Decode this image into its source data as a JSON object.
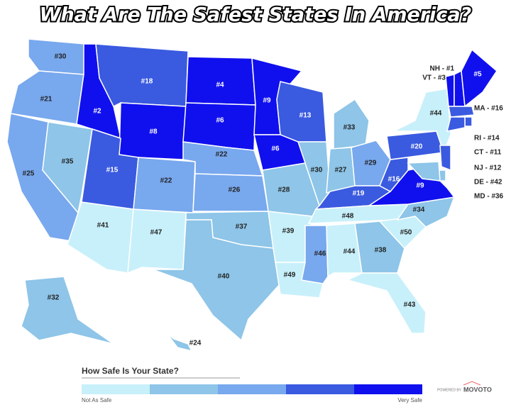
{
  "title": "What Are The Safest States In America?",
  "states": [
    {
      "label": "#30",
      "color": "#78a8ee"
    },
    {
      "label": "#21",
      "color": "#78a8ee"
    },
    {
      "label": "#25",
      "color": "#78a8ee"
    },
    {
      "label": "#35",
      "color": "#8ec5e8"
    },
    {
      "label": "#2",
      "color": "#1010ee"
    },
    {
      "label": "#18",
      "color": "#3a5ae0"
    },
    {
      "label": "#8",
      "color": "#1010ee"
    },
    {
      "label": "#15",
      "color": "#3a5ae0"
    },
    {
      "label": "#41",
      "color": "#c8f0fa"
    },
    {
      "label": "#47",
      "color": "#c8f0fa"
    },
    {
      "label": "#22",
      "color": "#78a8ee"
    },
    {
      "label": "#4",
      "color": "#1010ee"
    },
    {
      "label": "#6",
      "color": "#1010ee"
    },
    {
      "label": "#22",
      "color": "#78a8ee"
    },
    {
      "label": "#26",
      "color": "#78a8ee"
    },
    {
      "label": "#37",
      "color": "#8ec5e8"
    },
    {
      "label": "#40",
      "color": "#8ec5e8"
    },
    {
      "label": "#9",
      "color": "#1010ee"
    },
    {
      "label": "#6",
      "color": "#1010ee"
    },
    {
      "label": "#28",
      "color": "#8ec5e8"
    },
    {
      "label": "#39",
      "color": "#c8f0fa"
    },
    {
      "label": "#49",
      "color": "#c8f0fa"
    },
    {
      "label": "#13",
      "color": "#3a5ae0"
    },
    {
      "label": "#30",
      "color": "#8ec5e8"
    },
    {
      "label": "#33",
      "color": "#8ec5e8"
    },
    {
      "label": "#27",
      "color": "#8ec5e8"
    },
    {
      "label": "#29",
      "color": "#78a8ee"
    },
    {
      "label": "#19",
      "color": "#3a5ae0"
    },
    {
      "label": "#48",
      "color": "#c8f0fa"
    },
    {
      "label": "#46",
      "color": "#78a8ee"
    },
    {
      "label": "#44",
      "color": "#c8f0fa"
    },
    {
      "label": "#38",
      "color": "#8ec5e8"
    },
    {
      "label": "#43",
      "color": "#c8f0fa"
    },
    {
      "label": "#50",
      "color": "#c8f0fa"
    },
    {
      "label": "#34",
      "color": "#8ec5e8"
    },
    {
      "label": "#9",
      "color": "#1010ee"
    },
    {
      "label": "#16",
      "color": "#3a5ae0"
    },
    {
      "label": "#20",
      "color": "#3a5ae0"
    },
    {
      "label": "#44",
      "color": "#c8f0fa"
    },
    {
      "label": "VT - #3",
      "color": "#1010ee"
    },
    {
      "label": "NH - #1",
      "color": "#1010ee"
    },
    {
      "label": "#5",
      "color": "#1010ee"
    },
    {
      "label": "MA - #16",
      "color": "#3a5ae0"
    },
    {
      "label": "RI - #14",
      "color": "#3a5ae0"
    },
    {
      "label": "CT - #11",
      "color": "#3a5ae0"
    },
    {
      "label": "NJ - #12",
      "color": "#3a5ae0"
    },
    {
      "label": "DE - #42",
      "color": "#8ec5e8"
    },
    {
      "label": "MD - #36",
      "color": "#8ec5e8"
    },
    {
      "label": "#32",
      "color": "#8ec5e8"
    },
    {
      "label": "#24",
      "color": "#8ec5e8"
    }
  ],
  "legend": {
    "title": "How Safe Is Your State?",
    "colors": [
      "#c8f0fa",
      "#8ec5e8",
      "#78a8ee",
      "#3a5ae0",
      "#1010ee"
    ],
    "low": "Not As Safe",
    "high": "Very Safe"
  },
  "credit": {
    "prefix": "POWERED BY",
    "brand": "MOVOTO"
  }
}
